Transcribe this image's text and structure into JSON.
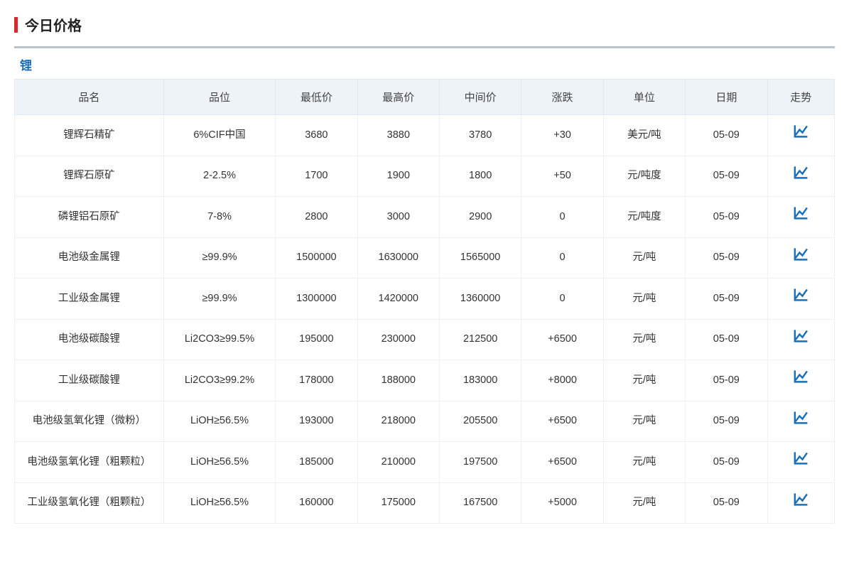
{
  "page_title": "今日价格",
  "section_title": "锂",
  "colors": {
    "accent_red": "#d7282d",
    "link_blue": "#1b6fb8",
    "header_bg": "#eef3f8",
    "border": "#e3e8ee",
    "panel_border_top": "#b8c4d0",
    "icon_blue": "#1b6fb8"
  },
  "columns": [
    {
      "key": "name",
      "label": "品名"
    },
    {
      "key": "grade",
      "label": "品位"
    },
    {
      "key": "low",
      "label": "最低价"
    },
    {
      "key": "high",
      "label": "最高价"
    },
    {
      "key": "mid",
      "label": "中间价"
    },
    {
      "key": "chg",
      "label": "涨跌"
    },
    {
      "key": "unit",
      "label": "单位"
    },
    {
      "key": "date",
      "label": "日期"
    },
    {
      "key": "trend",
      "label": "走势"
    }
  ],
  "rows": [
    {
      "name": "锂辉石精矿",
      "grade": "6%CIF中国",
      "low": "3680",
      "high": "3880",
      "mid": "3780",
      "mid_up": true,
      "chg": "+30",
      "chg_up": true,
      "unit": "美元/吨",
      "date": "05-09"
    },
    {
      "name": "锂辉石原矿",
      "grade": "2-2.5%",
      "low": "1700",
      "high": "1900",
      "mid": "1800",
      "mid_up": true,
      "chg": "+50",
      "chg_up": true,
      "unit": "元/吨度",
      "date": "05-09"
    },
    {
      "name": "磷锂铝石原矿",
      "grade": "7-8%",
      "low": "2800",
      "high": "3000",
      "mid": "2900",
      "mid_up": false,
      "chg": "0",
      "chg_up": false,
      "unit": "元/吨度",
      "date": "05-09"
    },
    {
      "name": "电池级金属锂",
      "grade": "≥99.9%",
      "low": "1500000",
      "high": "1630000",
      "mid": "1565000",
      "mid_up": false,
      "chg": "0",
      "chg_up": false,
      "unit": "元/吨",
      "date": "05-09"
    },
    {
      "name": "工业级金属锂",
      "grade": "≥99.9%",
      "low": "1300000",
      "high": "1420000",
      "mid": "1360000",
      "mid_up": false,
      "chg": "0",
      "chg_up": false,
      "unit": "元/吨",
      "date": "05-09"
    },
    {
      "name": "电池级碳酸锂",
      "grade": "Li2CO3≥99.5%",
      "low": "195000",
      "high": "230000",
      "mid": "212500",
      "mid_up": true,
      "chg": "+6500",
      "chg_up": true,
      "unit": "元/吨",
      "date": "05-09"
    },
    {
      "name": "工业级碳酸锂",
      "grade": "Li2CO3≥99.2%",
      "low": "178000",
      "high": "188000",
      "mid": "183000",
      "mid_up": true,
      "chg": "+8000",
      "chg_up": true,
      "unit": "元/吨",
      "date": "05-09"
    },
    {
      "name": "电池级氢氧化锂（微粉）",
      "grade": "LiOH≥56.5%",
      "low": "193000",
      "high": "218000",
      "mid": "205500",
      "mid_up": true,
      "chg": "+6500",
      "chg_up": true,
      "unit": "元/吨",
      "date": "05-09"
    },
    {
      "name": "电池级氢氧化锂（粗颗粒）",
      "grade": "LiOH≥56.5%",
      "low": "185000",
      "high": "210000",
      "mid": "197500",
      "mid_up": true,
      "chg": "+6500",
      "chg_up": true,
      "unit": "元/吨",
      "date": "05-09"
    },
    {
      "name": "工业级氢氧化锂（粗颗粒）",
      "grade": "LiOH≥56.5%",
      "low": "160000",
      "high": "175000",
      "mid": "167500",
      "mid_up": true,
      "chg": "+5000",
      "chg_up": true,
      "unit": "元/吨",
      "date": "05-09"
    }
  ]
}
